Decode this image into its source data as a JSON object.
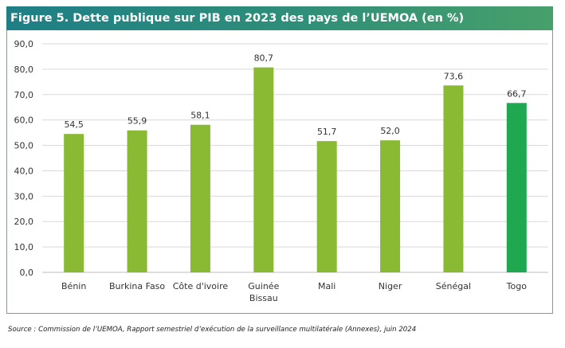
{
  "title": "Figure 5. Dette publique sur PIB en 2023 des pays de l’UEMOA (en %)",
  "source": "Source : Commission de l’UEMOA, Rapport semestriel d’exécution de la surveillance multilatérale (Annexes), juin 2024",
  "colors": {
    "bar": "#8aba34",
    "highlight": "#1fa84f",
    "title_start": "#1e7f86",
    "title_end": "#47a06a"
  },
  "chart_data": {
    "type": "bar",
    "title": "Figure 5. Dette publique sur PIB en 2023 des pays de l’UEMOA (en %)",
    "xlabel": "",
    "ylabel": "",
    "categories": [
      [
        "Bénin"
      ],
      [
        "Burkina Faso"
      ],
      [
        "Côte d'ivoire"
      ],
      [
        "Guinée",
        "Bissau"
      ],
      [
        "Mali"
      ],
      [
        "Niger"
      ],
      [
        "Sénégal"
      ],
      [
        "Togo"
      ]
    ],
    "values": [
      54.5,
      55.9,
      58.1,
      80.7,
      51.7,
      52.0,
      73.6,
      66.7
    ],
    "value_labels": [
      "54,5",
      "55,9",
      "58,1",
      "80,7",
      "51,7",
      "52,0",
      "73,6",
      "66,7"
    ],
    "highlight_index": 7,
    "ylim": [
      0,
      90
    ],
    "yticks": [
      0,
      10,
      20,
      30,
      40,
      50,
      60,
      70,
      80,
      90
    ],
    "ytick_labels": [
      "0,0",
      "10,0",
      "20,0",
      "30,0",
      "40,0",
      "50,0",
      "60,0",
      "70,0",
      "80,0",
      "90,0"
    ],
    "grid": true,
    "legend": "none"
  }
}
